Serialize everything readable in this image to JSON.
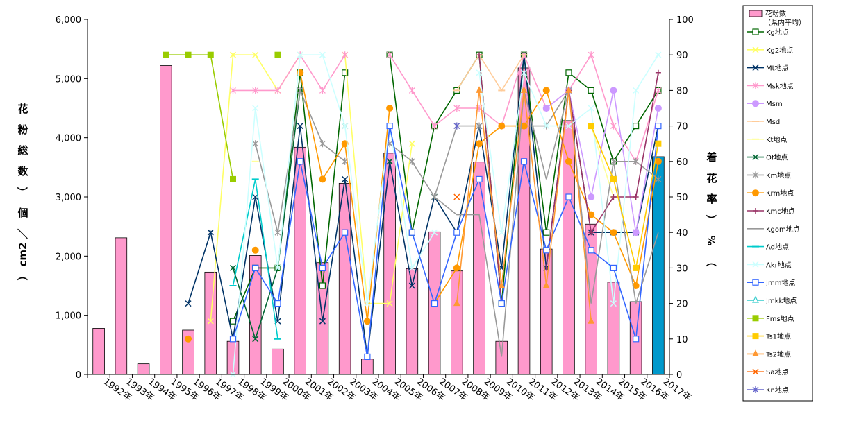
{
  "chart_data": {
    "type": "bar",
    "categories": [
      "1992年",
      "1993年",
      "1994年",
      "1995年",
      "1996年",
      "1997年",
      "1998年",
      "1999年",
      "2000年",
      "2001年",
      "2002年",
      "2003年",
      "2004年",
      "2005年",
      "2006年",
      "2007年",
      "2008年",
      "2009年",
      "2010年",
      "2011年",
      "2012年",
      "2013年",
      "2014年",
      "2015年",
      "2016年",
      "2017年"
    ],
    "y_left": {
      "label": "花　粉　総　数　（個／cm2）",
      "label_chars": [
        "花",
        "粉",
        "総",
        "数",
        "（",
        "個",
        "／",
        "cm2",
        "）"
      ],
      "ylim": [
        0,
        6000
      ],
      "ticks": [
        "0",
        "1,000",
        "2,000",
        "3,000",
        "4,000",
        "5,000",
        "6,000"
      ]
    },
    "y_right": {
      "label": "着　花　率　（%）",
      "label_chars": [
        "着",
        "花",
        "率",
        "（",
        "%",
        "）"
      ],
      "ylim": [
        0,
        100
      ],
      "ticks": [
        "0",
        "10",
        "20",
        "30",
        "40",
        "50",
        "60",
        "70",
        "80",
        "90",
        "100"
      ]
    },
    "bars": {
      "name": "花粉数（県内平均）",
      "legend_line1": "花粉数",
      "legend_line2": "（県内平均）",
      "color": "#ff99cc",
      "highlight_color": "#0099cc",
      "highlight_index": 25,
      "values": [
        780,
        2310,
        180,
        5220,
        750,
        1730,
        560,
        2010,
        430,
        3840,
        1890,
        3230,
        260,
        3740,
        1790,
        2410,
        1750,
        3590,
        560,
        5180,
        2120,
        4290,
        2540,
        1560,
        1230,
        3680
      ]
    },
    "series": [
      {
        "name": "Kg地点",
        "color": "#006600",
        "marker": "square-open",
        "values": [
          null,
          null,
          null,
          null,
          null,
          null,
          15,
          30,
          30,
          85,
          25,
          85,
          null,
          90,
          40,
          70,
          80,
          90,
          20,
          90,
          40,
          85,
          80,
          60,
          70,
          80
        ]
      },
      {
        "name": "Kg2地点",
        "color": "#ffff66",
        "marker": "x",
        "values": [
          null,
          null,
          null,
          null,
          null,
          15,
          90,
          90,
          80,
          90,
          null,
          90,
          20,
          20,
          65,
          null,
          null,
          null,
          null,
          null,
          null,
          null,
          null,
          null,
          null,
          null
        ]
      },
      {
        "name": "Mt地点",
        "color": "#003366",
        "marker": "x",
        "values": [
          null,
          null,
          null,
          null,
          20,
          40,
          10,
          50,
          15,
          70,
          15,
          55,
          5,
          60,
          25,
          50,
          40,
          70,
          30,
          90,
          30,
          80,
          40,
          40,
          40,
          70
        ]
      },
      {
        "name": "Msk地点",
        "color": "#ff99cc",
        "marker": "star",
        "values": [
          null,
          null,
          null,
          null,
          null,
          null,
          80,
          80,
          80,
          90,
          80,
          90,
          null,
          90,
          80,
          70,
          75,
          75,
          70,
          90,
          75,
          80,
          90,
          70,
          60,
          80
        ]
      },
      {
        "name": "Msm",
        "color": "#cc99ff",
        "marker": "circle",
        "values": [
          null,
          null,
          null,
          null,
          null,
          null,
          null,
          null,
          null,
          null,
          null,
          null,
          null,
          null,
          null,
          null,
          null,
          null,
          null,
          null,
          75,
          80,
          50,
          80,
          40,
          75
        ]
      },
      {
        "name": "Msd",
        "color": "#ffcc99",
        "marker": "dash",
        "values": [
          null,
          null,
          null,
          null,
          null,
          null,
          null,
          null,
          null,
          null,
          null,
          null,
          null,
          null,
          null,
          null,
          80,
          90,
          80,
          90,
          null,
          null,
          null,
          null,
          null,
          null
        ]
      },
      {
        "name": "Kt地点",
        "color": "#ffff99",
        "marker": "dash",
        "values": [
          null,
          null,
          null,
          null,
          null,
          null,
          null,
          60,
          null,
          85,
          null,
          null,
          null,
          70,
          null,
          null,
          null,
          null,
          null,
          null,
          null,
          null,
          70,
          50,
          null,
          null
        ]
      },
      {
        "name": "Of地点",
        "color": "#006633",
        "marker": "x",
        "values": [
          null,
          null,
          null,
          null,
          null,
          null,
          30,
          10,
          30,
          80,
          null,
          70,
          null,
          60,
          null,
          50,
          null,
          null,
          null,
          null,
          null,
          null,
          null,
          null,
          null,
          null
        ]
      },
      {
        "name": "Km地点",
        "color": "#999999",
        "marker": "star",
        "values": [
          null,
          null,
          null,
          null,
          null,
          null,
          null,
          65,
          40,
          80,
          65,
          60,
          null,
          65,
          60,
          50,
          70,
          70,
          null,
          70,
          70,
          80,
          null,
          60,
          60,
          55
        ]
      },
      {
        "name": "Krm地点",
        "color": "#ff9900",
        "marker": "circle",
        "values": [
          null,
          null,
          null,
          null,
          10,
          null,
          null,
          35,
          null,
          85,
          55,
          65,
          15,
          75,
          null,
          20,
          30,
          65,
          70,
          70,
          80,
          60,
          45,
          40,
          25,
          60
        ]
      },
      {
        "name": "Kmc地点",
        "color": "#993366",
        "marker": "plus",
        "values": [
          null,
          null,
          null,
          null,
          null,
          null,
          null,
          null,
          null,
          null,
          null,
          null,
          null,
          null,
          null,
          null,
          null,
          90,
          20,
          null,
          30,
          80,
          40,
          50,
          50,
          85
        ]
      },
      {
        "name": "Kgom地点",
        "color": "#999999",
        "marker": "none",
        "values": [
          null,
          null,
          null,
          null,
          null,
          null,
          null,
          null,
          null,
          null,
          null,
          null,
          null,
          null,
          null,
          50,
          45,
          45,
          5,
          80,
          55,
          80,
          20,
          60,
          20,
          40
        ]
      },
      {
        "name": "Ad地点",
        "color": "#00cccc",
        "marker": "dash",
        "values": [
          null,
          null,
          null,
          null,
          null,
          null,
          25,
          55,
          10,
          null,
          null,
          null,
          null,
          null,
          null,
          null,
          null,
          null,
          null,
          null,
          null,
          null,
          null,
          null,
          null,
          null
        ]
      },
      {
        "name": "Akr地点",
        "color": "#ccffff",
        "marker": "x",
        "values": [
          null,
          null,
          null,
          null,
          null,
          null,
          0,
          75,
          30,
          90,
          90,
          70,
          20,
          70,
          30,
          40,
          null,
          85,
          40,
          85,
          70,
          70,
          75,
          20,
          80,
          90
        ]
      },
      {
        "name": "Jmm地点",
        "color": "#3366ff",
        "marker": "square-open",
        "values": [
          null,
          null,
          null,
          null,
          null,
          null,
          10,
          30,
          20,
          60,
          30,
          40,
          5,
          70,
          40,
          20,
          40,
          55,
          20,
          60,
          35,
          50,
          35,
          30,
          10,
          70
        ]
      },
      {
        "name": "Jmkk地点",
        "color": "#33cccc",
        "marker": "triangle-open",
        "values": [
          null,
          null,
          null,
          null,
          null,
          null,
          null,
          null,
          null,
          null,
          null,
          null,
          null,
          null,
          null,
          null,
          null,
          null,
          null,
          null,
          null,
          null,
          null,
          null,
          null,
          null
        ]
      },
      {
        "name": "Fms地点",
        "color": "#99cc00",
        "marker": "square",
        "values": [
          null,
          null,
          null,
          90,
          90,
          90,
          55,
          null,
          90,
          null,
          null,
          null,
          null,
          null,
          null,
          null,
          null,
          null,
          null,
          null,
          null,
          null,
          null,
          null,
          null,
          null
        ]
      },
      {
        "name": "Ts1地点",
        "color": "#ffcc00",
        "marker": "square",
        "values": [
          null,
          null,
          null,
          null,
          null,
          null,
          null,
          null,
          null,
          null,
          null,
          null,
          null,
          null,
          null,
          null,
          null,
          null,
          null,
          null,
          null,
          null,
          70,
          55,
          30,
          65
        ]
      },
      {
        "name": "Ts2地点",
        "color": "#ff9933",
        "marker": "triangle",
        "values": [
          null,
          null,
          null,
          null,
          null,
          null,
          null,
          null,
          null,
          null,
          null,
          null,
          null,
          null,
          null,
          null,
          20,
          80,
          25,
          80,
          25,
          80,
          15,
          null,
          null,
          null
        ]
      },
      {
        "name": "Sa地点",
        "color": "#ff6600",
        "marker": "x",
        "values": [
          null,
          null,
          null,
          null,
          null,
          null,
          null,
          null,
          null,
          null,
          null,
          null,
          null,
          null,
          null,
          null,
          50,
          null,
          null,
          null,
          null,
          null,
          null,
          null,
          null,
          null
        ]
      },
      {
        "name": "Kn地点",
        "color": "#6666cc",
        "marker": "star",
        "values": [
          null,
          null,
          null,
          null,
          null,
          null,
          null,
          null,
          null,
          null,
          null,
          null,
          null,
          null,
          null,
          null,
          70,
          null,
          null,
          null,
          null,
          null,
          null,
          null,
          null,
          null
        ]
      }
    ],
    "grid": false,
    "legend_position": "right"
  }
}
